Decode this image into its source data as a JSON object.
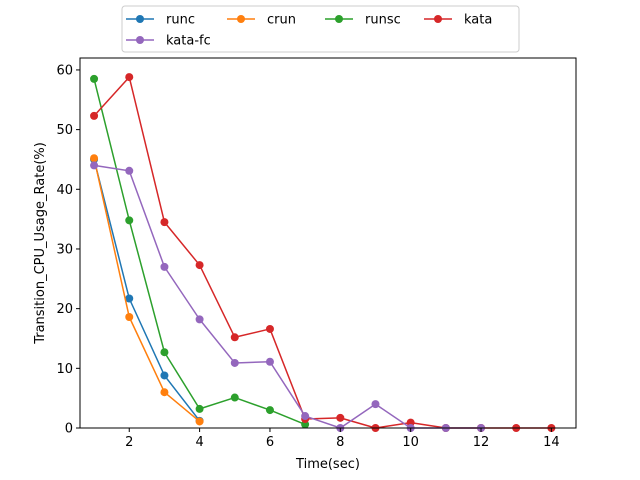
{
  "chart_data": {
    "type": "line",
    "title": "",
    "xlabel": "Time(sec)",
    "ylabel": "Transition_CPU_Usage_Rate(%)",
    "xlim": [
      0.6,
      14.7
    ],
    "ylim": [
      0,
      62
    ],
    "xticks": [
      2,
      4,
      6,
      8,
      10,
      12,
      14
    ],
    "yticks": [
      0,
      10,
      20,
      30,
      40,
      50,
      60
    ],
    "grid": false,
    "legend_position": "top-center",
    "series": [
      {
        "name": "runc",
        "color": "#1f77b4",
        "x": [
          1,
          2,
          3,
          4
        ],
        "y": [
          45.0,
          21.7,
          8.8,
          1.2
        ]
      },
      {
        "name": "crun",
        "color": "#ff7f0e",
        "x": [
          1,
          2,
          3,
          4
        ],
        "y": [
          45.2,
          18.6,
          6.0,
          1.1
        ]
      },
      {
        "name": "runsc",
        "color": "#2ca02c",
        "x": [
          1,
          2,
          3,
          4,
          5,
          6,
          7
        ],
        "y": [
          58.5,
          34.8,
          12.7,
          3.2,
          5.1,
          3.0,
          0.6
        ]
      },
      {
        "name": "kata",
        "color": "#d62728",
        "x": [
          1,
          2,
          3,
          4,
          5,
          6,
          7,
          8,
          9,
          10,
          11,
          12,
          13,
          14
        ],
        "y": [
          52.3,
          58.8,
          34.5,
          27.3,
          15.2,
          16.6,
          1.5,
          1.7,
          0.0,
          0.9,
          0.0,
          0.0,
          0.0,
          0.0
        ]
      },
      {
        "name": "kata-fc",
        "color": "#9467bd",
        "x": [
          1,
          2,
          3,
          4,
          5,
          6,
          7,
          8,
          9,
          10,
          11,
          12
        ],
        "y": [
          44.0,
          43.1,
          27.0,
          18.2,
          10.9,
          11.1,
          2.0,
          0.0,
          4.0,
          0.0,
          0.0,
          0.0
        ]
      }
    ]
  }
}
